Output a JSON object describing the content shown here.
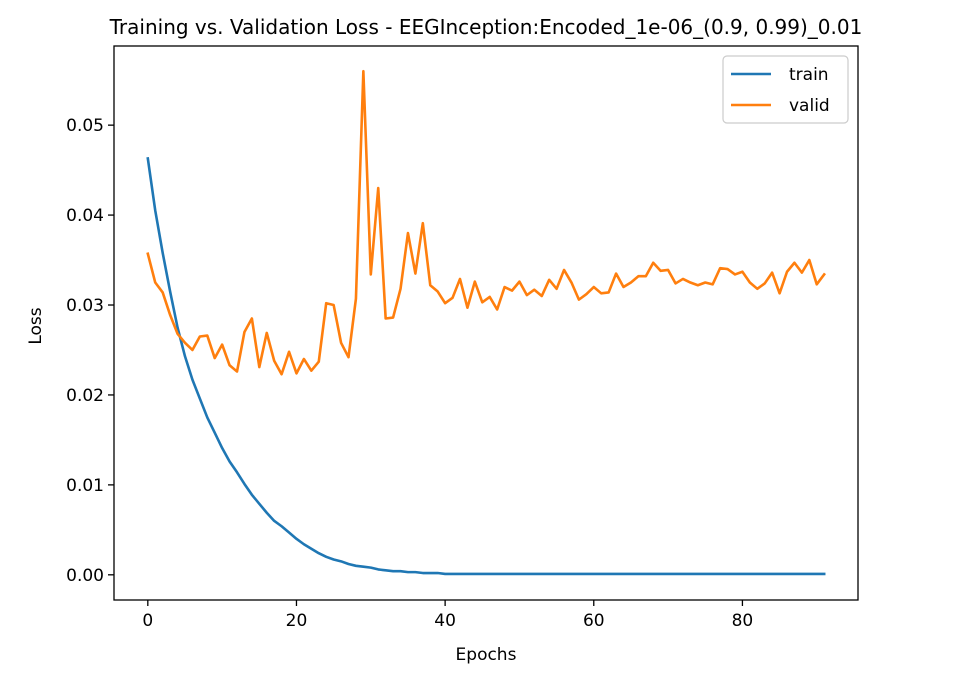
{
  "chart_data": {
    "type": "line",
    "title": "Training vs. Validation Loss - EEGInception:Encoded_1e-06_(0.9, 0.99)_0.01",
    "xlabel": "Epochs",
    "ylabel": "Loss",
    "xlim": [
      -4.55,
      95.55
    ],
    "ylim": [
      -0.0028,
      0.0588
    ],
    "xticks": [
      0,
      20,
      40,
      60,
      80
    ],
    "xtick_labels": [
      "0",
      "20",
      "40",
      "60",
      "80"
    ],
    "yticks": [
      0.0,
      0.01,
      0.02,
      0.03,
      0.04,
      0.05
    ],
    "ytick_labels": [
      "0.00",
      "0.01",
      "0.02",
      "0.03",
      "0.04",
      "0.05"
    ],
    "grid": false,
    "legend_position": "upper-right",
    "x": [
      0,
      1,
      2,
      3,
      4,
      5,
      6,
      7,
      8,
      9,
      10,
      11,
      12,
      13,
      14,
      15,
      16,
      17,
      18,
      19,
      20,
      21,
      22,
      23,
      24,
      25,
      26,
      27,
      28,
      29,
      30,
      31,
      32,
      33,
      34,
      35,
      36,
      37,
      38,
      39,
      40,
      41,
      42,
      43,
      44,
      45,
      46,
      47,
      48,
      49,
      50,
      51,
      52,
      53,
      54,
      55,
      56,
      57,
      58,
      59,
      60,
      61,
      62,
      63,
      64,
      65,
      66,
      67,
      68,
      69,
      70,
      71,
      72,
      73,
      74,
      75,
      76,
      77,
      78,
      79,
      80,
      81,
      82,
      83,
      84,
      85,
      86,
      87,
      88,
      89,
      90,
      91
    ],
    "series": [
      {
        "name": "train",
        "color": "#1f77b4",
        "values": [
          0.0463,
          0.0405,
          0.0358,
          0.0315,
          0.0275,
          0.0243,
          0.0217,
          0.0196,
          0.0175,
          0.0158,
          0.0141,
          0.0126,
          0.0114,
          0.0101,
          0.0089,
          0.0079,
          0.0069,
          0.006,
          0.0054,
          0.0047,
          0.004,
          0.0034,
          0.0029,
          0.0024,
          0.002,
          0.0017,
          0.0015,
          0.0012,
          0.001,
          0.0009,
          0.0008,
          0.0006,
          0.0005,
          0.0004,
          0.0004,
          0.0003,
          0.0003,
          0.0002,
          0.0002,
          0.0002,
          0.0001,
          0.0001,
          0.0001,
          0.0001,
          0.0001,
          0.0001,
          0.0001,
          0.0001,
          0.0001,
          0.0001,
          0.0001,
          0.0001,
          0.0001,
          0.0001,
          0.0001,
          0.0001,
          0.0001,
          0.0001,
          0.0001,
          0.0001,
          0.0001,
          0.0001,
          0.0001,
          0.0001,
          0.0001,
          0.0001,
          0.0001,
          0.0001,
          0.0001,
          0.0001,
          0.0001,
          0.0001,
          0.0001,
          0.0001,
          0.0001,
          0.0001,
          0.0001,
          0.0001,
          0.0001,
          0.0001,
          0.0001,
          0.0001,
          0.0001,
          0.0001,
          0.0001,
          0.0001,
          0.0001,
          0.0001,
          0.0001,
          0.0001,
          0.0001,
          0.0001
        ]
      },
      {
        "name": "valid",
        "color": "#ff7f0e",
        "values": [
          0.0357,
          0.0325,
          0.0314,
          0.0289,
          0.0268,
          0.0258,
          0.025,
          0.0265,
          0.0266,
          0.0241,
          0.0256,
          0.0233,
          0.0226,
          0.027,
          0.0285,
          0.0231,
          0.0269,
          0.0238,
          0.0223,
          0.0248,
          0.0224,
          0.024,
          0.0227,
          0.0237,
          0.0302,
          0.03,
          0.0258,
          0.0242,
          0.0307,
          0.056,
          0.0334,
          0.043,
          0.0285,
          0.0286,
          0.0318,
          0.038,
          0.0335,
          0.0391,
          0.0322,
          0.0315,
          0.0302,
          0.0308,
          0.0329,
          0.0297,
          0.0326,
          0.0303,
          0.0309,
          0.0295,
          0.032,
          0.0316,
          0.0326,
          0.0311,
          0.0317,
          0.031,
          0.0328,
          0.0318,
          0.0339,
          0.0325,
          0.0306,
          0.0312,
          0.032,
          0.0313,
          0.0314,
          0.0335,
          0.032,
          0.0325,
          0.0332,
          0.0332,
          0.0347,
          0.0338,
          0.0339,
          0.0324,
          0.0329,
          0.0325,
          0.0322,
          0.0325,
          0.0323,
          0.0341,
          0.034,
          0.0334,
          0.0337,
          0.0325,
          0.0318,
          0.0324,
          0.0336,
          0.0313,
          0.0337,
          0.0347,
          0.0336,
          0.035,
          0.0323,
          0.0334
        ]
      }
    ]
  }
}
